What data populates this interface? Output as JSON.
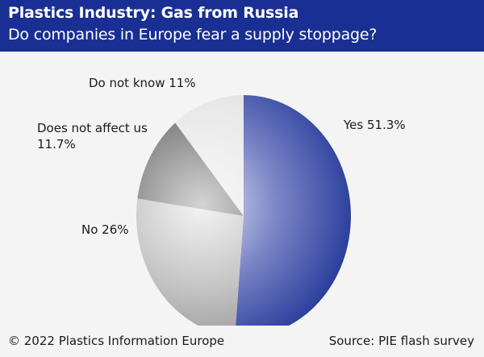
{
  "header": {
    "title": "Plastics Industry: Gas from Russia",
    "subtitle": "Do companies in Europe fear a supply stoppage?"
  },
  "footer": {
    "copyright": "© 2022 Plastics Information Europe",
    "source": "Source: PIE flash survey"
  },
  "colors": {
    "header_bg": "#1a2f93",
    "yes": "#1a2f93",
    "no": "#9a9a9a",
    "affect": "#6a6a6a",
    "dontknow": "#d8d8d8"
  },
  "chart_data": {
    "type": "pie",
    "title": "Do companies in Europe fear a supply stoppage?",
    "slices": [
      {
        "key": "yes",
        "label": "Yes 51.3%",
        "value": 51.3
      },
      {
        "key": "no",
        "label": "No 26%",
        "value": 26
      },
      {
        "key": "affect",
        "label": "Does not affect us 11.7%",
        "value": 11.7
      },
      {
        "key": "dontknow",
        "label": "Do not know 11%",
        "value": 11
      }
    ],
    "labels": {
      "yes": [
        "Yes 51.3%"
      ],
      "no": [
        "No 26%"
      ],
      "affect": [
        "Does not affect us",
        "11.7%"
      ],
      "dontknow": [
        "Do not know 11%"
      ]
    }
  }
}
